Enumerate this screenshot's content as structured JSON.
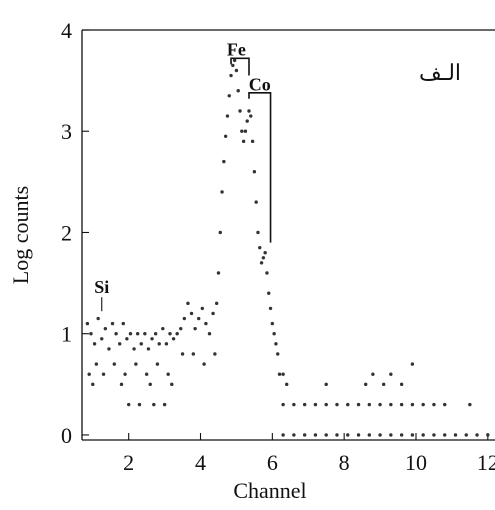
{
  "chart_data": {
    "type": "scatter",
    "title": "",
    "xlabel": "Channel",
    "ylabel": "Log counts",
    "xlim": [
      0.7,
      12.2
    ],
    "ylim": [
      -0.05,
      4.0
    ],
    "x_ticks": [
      "2",
      "4",
      "6",
      "8",
      "10",
      "12"
    ],
    "y_ticks": [
      "0",
      "1",
      "2",
      "3",
      "4"
    ],
    "corner_label": "الـف",
    "grid": false,
    "annotations": [
      {
        "label": "Si",
        "x": 1.25,
        "y": 1.4
      },
      {
        "label": "Fe",
        "x": 5.0,
        "y": 3.75
      },
      {
        "label": "Co",
        "x": 5.65,
        "y": 3.4
      }
    ],
    "brackets": [
      {
        "peak": "Fe",
        "x1": 4.85,
        "x2": 5.35,
        "top": 3.72,
        "bottom": 3.55
      },
      {
        "peak": "Co",
        "x1": 5.35,
        "x2": 5.95,
        "top": 3.38,
        "bottom": 1.9
      }
    ],
    "series": [
      {
        "values": [
          [
            0.85,
            1.1
          ],
          [
            0.95,
            1.0
          ],
          [
            1.05,
            0.9
          ],
          [
            1.15,
            1.15
          ],
          [
            1.25,
            0.95
          ],
          [
            1.35,
            1.05
          ],
          [
            1.45,
            0.85
          ],
          [
            1.55,
            1.1
          ],
          [
            1.65,
            1.0
          ],
          [
            1.75,
            0.9
          ],
          [
            1.85,
            1.1
          ],
          [
            1.95,
            0.95
          ],
          [
            2.05,
            1.0
          ],
          [
            2.15,
            0.85
          ],
          [
            2.25,
            1.0
          ],
          [
            2.35,
            0.9
          ],
          [
            2.45,
            1.0
          ],
          [
            2.55,
            0.85
          ],
          [
            2.65,
            0.95
          ],
          [
            2.75,
            1.0
          ],
          [
            2.85,
            0.9
          ],
          [
            2.95,
            1.05
          ],
          [
            3.05,
            0.9
          ],
          [
            3.15,
            1.0
          ],
          [
            3.25,
            0.95
          ],
          [
            3.35,
            1.0
          ],
          [
            0.9,
            0.6
          ],
          [
            1.1,
            0.7
          ],
          [
            1.3,
            0.6
          ],
          [
            1.6,
            0.7
          ],
          [
            1.9,
            0.6
          ],
          [
            2.2,
            0.7
          ],
          [
            2.5,
            0.6
          ],
          [
            2.8,
            0.7
          ],
          [
            3.1,
            0.6
          ],
          [
            1.0,
            0.5
          ],
          [
            1.8,
            0.5
          ],
          [
            2.6,
            0.5
          ],
          [
            3.2,
            0.5
          ],
          [
            2.0,
            0.3
          ],
          [
            2.3,
            0.3
          ],
          [
            2.7,
            0.3
          ],
          [
            3.0,
            0.3
          ],
          [
            3.45,
            1.05
          ],
          [
            3.55,
            1.15
          ],
          [
            3.65,
            1.3
          ],
          [
            3.75,
            1.2
          ],
          [
            3.85,
            1.05
          ],
          [
            3.95,
            1.15
          ],
          [
            4.05,
            1.25
          ],
          [
            4.15,
            1.1
          ],
          [
            4.25,
            1.0
          ],
          [
            4.35,
            1.2
          ],
          [
            4.45,
            1.3
          ],
          [
            3.5,
            0.8
          ],
          [
            3.8,
            0.8
          ],
          [
            4.1,
            0.7
          ],
          [
            4.4,
            0.8
          ],
          [
            4.5,
            1.6
          ],
          [
            4.55,
            2.0
          ],
          [
            4.6,
            2.4
          ],
          [
            4.65,
            2.7
          ],
          [
            4.7,
            2.95
          ],
          [
            4.75,
            3.15
          ],
          [
            4.8,
            3.35
          ],
          [
            4.85,
            3.55
          ],
          [
            4.9,
            3.65
          ],
          [
            4.95,
            3.7
          ],
          [
            5.0,
            3.6
          ],
          [
            5.05,
            3.4
          ],
          [
            5.1,
            3.2
          ],
          [
            5.15,
            3.0
          ],
          [
            5.2,
            2.9
          ],
          [
            5.25,
            3.0
          ],
          [
            5.3,
            3.1
          ],
          [
            5.35,
            3.2
          ],
          [
            5.4,
            3.15
          ],
          [
            5.45,
            2.9
          ],
          [
            5.5,
            2.6
          ],
          [
            5.55,
            2.3
          ],
          [
            5.6,
            2.0
          ],
          [
            5.65,
            1.85
          ],
          [
            5.7,
            1.7
          ],
          [
            5.75,
            1.75
          ],
          [
            5.8,
            1.8
          ],
          [
            5.85,
            1.6
          ],
          [
            5.9,
            1.4
          ],
          [
            5.95,
            1.25
          ],
          [
            6.0,
            1.1
          ],
          [
            6.05,
            1.0
          ],
          [
            6.1,
            0.9
          ],
          [
            6.15,
            0.8
          ],
          [
            6.2,
            0.6
          ],
          [
            6.3,
            0.3
          ],
          [
            6.6,
            0.3
          ],
          [
            6.9,
            0.3
          ],
          [
            7.2,
            0.3
          ],
          [
            7.5,
            0.3
          ],
          [
            7.8,
            0.3
          ],
          [
            8.1,
            0.3
          ],
          [
            8.4,
            0.3
          ],
          [
            8.7,
            0.3
          ],
          [
            9.0,
            0.3
          ],
          [
            9.3,
            0.3
          ],
          [
            9.6,
            0.3
          ],
          [
            9.9,
            0.3
          ],
          [
            10.2,
            0.3
          ],
          [
            10.5,
            0.3
          ],
          [
            10.8,
            0.3
          ],
          [
            11.5,
            0.3
          ],
          [
            6.3,
            0.6
          ],
          [
            6.4,
            0.5
          ],
          [
            7.5,
            0.5
          ],
          [
            8.6,
            0.5
          ],
          [
            8.8,
            0.6
          ],
          [
            9.1,
            0.5
          ],
          [
            9.3,
            0.6
          ],
          [
            9.6,
            0.5
          ],
          [
            9.9,
            0.7
          ],
          [
            6.3,
            0.0
          ],
          [
            6.6,
            0.0
          ],
          [
            6.9,
            0.0
          ],
          [
            7.2,
            0.0
          ],
          [
            7.5,
            0.0
          ],
          [
            7.8,
            0.0
          ],
          [
            8.1,
            0.0
          ],
          [
            8.4,
            0.0
          ],
          [
            8.7,
            0.0
          ],
          [
            9.0,
            0.0
          ],
          [
            9.3,
            0.0
          ],
          [
            9.6,
            0.0
          ],
          [
            9.9,
            0.0
          ],
          [
            10.2,
            0.0
          ],
          [
            10.5,
            0.0
          ],
          [
            10.8,
            0.0
          ],
          [
            11.1,
            0.0
          ],
          [
            11.4,
            0.0
          ],
          [
            11.7,
            0.0
          ],
          [
            12.0,
            0.0
          ]
        ]
      }
    ]
  }
}
